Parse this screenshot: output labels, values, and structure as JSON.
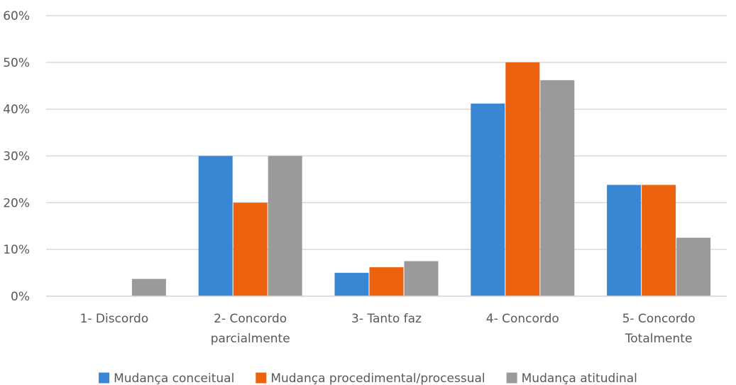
{
  "chart_data": {
    "type": "bar",
    "categories": [
      [
        "1- Discordo"
      ],
      [
        "2- Concordo",
        "parcialmente"
      ],
      [
        "3- Tanto faz"
      ],
      [
        "4- Concordo"
      ],
      [
        "5- Concordo",
        "Totalmente"
      ]
    ],
    "series": [
      {
        "name": "Mudança conceitual",
        "color": "#3987d4",
        "values": [
          0,
          30,
          5,
          41.2,
          23.8
        ]
      },
      {
        "name": "Mudança procedimental/processual",
        "color": "#ec620f",
        "values": [
          0,
          20,
          6.2,
          50,
          23.8
        ]
      },
      {
        "name": "Mudança atitudinal",
        "color": "#9a9a9a",
        "values": [
          3.7,
          30,
          7.5,
          46.2,
          12.5
        ]
      }
    ],
    "y_ticks": [
      "0%",
      "10%",
      "20%",
      "30%",
      "40%",
      "50%",
      "60%"
    ],
    "ylim": [
      0,
      60
    ],
    "grid": true,
    "gridline_color": "#d9d9d9",
    "legend_position": "bottom",
    "title": "",
    "xlabel": "",
    "ylabel": ""
  }
}
